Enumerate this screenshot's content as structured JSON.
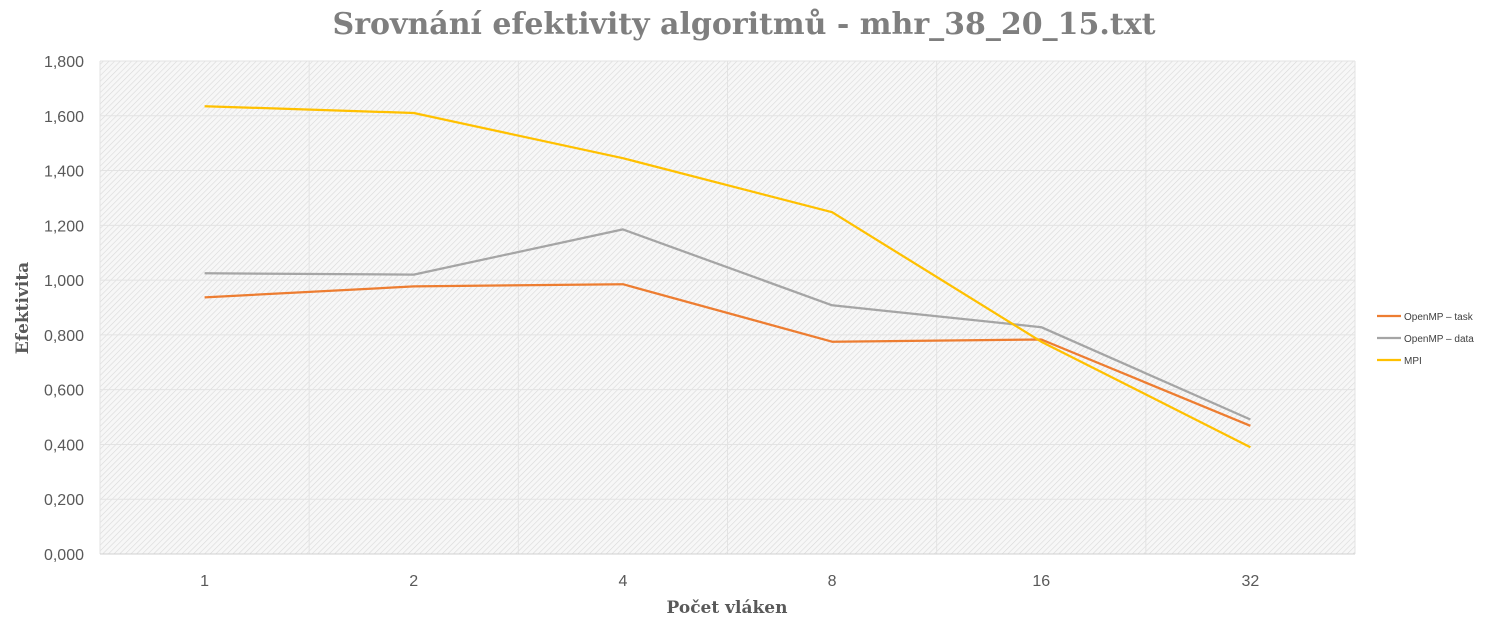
{
  "chart_data": {
    "type": "line",
    "title": "Srovnání efektivity algoritmů - mhr_38_20_15.txt",
    "xlabel": "Počet vláken",
    "ylabel": "Efektivita",
    "categories": [
      "1",
      "2",
      "4",
      "8",
      "16",
      "32"
    ],
    "ylim": [
      0,
      1.8
    ],
    "yticks": [
      "0,000",
      "0,200",
      "0,400",
      "0,600",
      "0,800",
      "1,000",
      "1,200",
      "1,400",
      "1,600",
      "1,800"
    ],
    "grid": true,
    "legend_position": "right",
    "series": [
      {
        "name": "OpenMP – task",
        "color": "#ed7d31",
        "values": [
          0.937,
          0.977,
          0.985,
          0.775,
          0.783,
          0.468
        ]
      },
      {
        "name": "OpenMP – data",
        "color": "#a5a5a5",
        "values": [
          1.025,
          1.02,
          1.185,
          0.908,
          0.828,
          0.491
        ]
      },
      {
        "name": "MPI",
        "color": "#ffc000",
        "values": [
          1.635,
          1.61,
          1.445,
          1.248,
          0.775,
          0.39
        ]
      }
    ]
  }
}
